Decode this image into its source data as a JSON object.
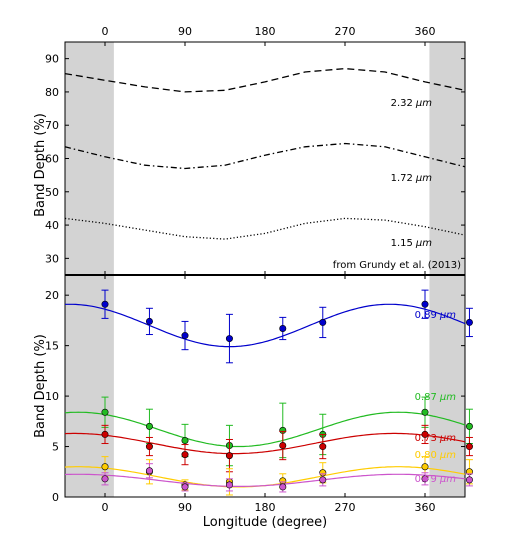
{
  "chart_data": [
    {
      "type": "line",
      "panel": "top",
      "ylabel": "Band Depth (%)",
      "xlim": [
        -45,
        405
      ],
      "ylim": [
        25,
        95
      ],
      "x_ticks_top": [
        "0",
        "90",
        "180",
        "270",
        "360"
      ],
      "x_tick_values_top": [
        0,
        90,
        180,
        270,
        360
      ],
      "y_ticks": [
        "30",
        "40",
        "50",
        "60",
        "70",
        "80",
        "90"
      ],
      "y_tick_values": [
        30,
        40,
        50,
        60,
        70,
        80,
        90
      ],
      "shaded_x_ranges": [
        [
          -45,
          10
        ],
        [
          365,
          405
        ]
      ],
      "source_note": "from Grundy et al. (2013)",
      "series": [
        {
          "name": "2.32 μm",
          "label_number": "2.32",
          "label_unit": "μm",
          "style": "dashed",
          "color": "#000000",
          "points": [
            [
              -45,
              85.5
            ],
            [
              0,
              83.5
            ],
            [
              45,
              81.5
            ],
            [
              90,
              80
            ],
            [
              135,
              80.5
            ],
            [
              180,
              83
            ],
            [
              225,
              86
            ],
            [
              270,
              87
            ],
            [
              315,
              86
            ],
            [
              360,
              83
            ],
            [
              405,
              80.5
            ]
          ]
        },
        {
          "name": "1.72 μm",
          "label_number": "1.72",
          "label_unit": "μm",
          "style": "dashdot",
          "color": "#000000",
          "points": [
            [
              -45,
              63.5
            ],
            [
              0,
              60.5
            ],
            [
              45,
              58
            ],
            [
              90,
              57
            ],
            [
              135,
              58
            ],
            [
              180,
              61
            ],
            [
              225,
              63.5
            ],
            [
              270,
              64.5
            ],
            [
              315,
              63.5
            ],
            [
              360,
              60.5
            ],
            [
              405,
              57.5
            ]
          ]
        },
        {
          "name": "1.15 μm",
          "label_number": "1.15",
          "label_unit": "μm",
          "style": "dotted",
          "color": "#000000",
          "points": [
            [
              -45,
              42
            ],
            [
              0,
              40.5
            ],
            [
              45,
              38.5
            ],
            [
              90,
              36.5
            ],
            [
              135,
              35.8
            ],
            [
              180,
              37.5
            ],
            [
              225,
              40.5
            ],
            [
              270,
              42
            ],
            [
              315,
              41.5
            ],
            [
              360,
              39.5
            ],
            [
              405,
              37
            ]
          ]
        }
      ]
    },
    {
      "type": "scatter",
      "panel": "bottom",
      "xlabel": "Longitude (degree)",
      "ylabel": "Band Depth (%)",
      "xlim": [
        -45,
        405
      ],
      "ylim": [
        0,
        22
      ],
      "x_ticks": [
        "0",
        "90",
        "180",
        "270",
        "360"
      ],
      "x_tick_values": [
        0,
        90,
        180,
        270,
        360
      ],
      "y_ticks": [
        "0",
        "5",
        "10",
        "15",
        "20"
      ],
      "y_tick_values": [
        0,
        5,
        10,
        15,
        20
      ],
      "shaded_x_ranges": [
        [
          -45,
          10
        ],
        [
          365,
          405
        ]
      ],
      "series": [
        {
          "name": "0.89 μm",
          "label_number": "0.89",
          "label_unit": "μm",
          "color": "#0000cc",
          "x": [
            0,
            50,
            90,
            140,
            200,
            245,
            360,
            410
          ],
          "y": [
            19.1,
            17.4,
            16.0,
            15.7,
            16.7,
            17.3,
            19.1,
            17.3
          ],
          "err": [
            1.4,
            1.3,
            1.4,
            2.4,
            1.1,
            1.5,
            1.4,
            1.4
          ],
          "fit": {
            "mean": 17.0,
            "amp": 2.1,
            "phase": 320
          }
        },
        {
          "name": "0.87 μm",
          "label_number": "0.87",
          "label_unit": "μm",
          "color": "#22bb22",
          "x": [
            0,
            50,
            90,
            140,
            200,
            245,
            360,
            410
          ],
          "y": [
            8.4,
            7.0,
            5.6,
            5.1,
            6.6,
            6.2,
            8.4,
            7.0
          ],
          "err": [
            1.5,
            1.7,
            1.6,
            2.0,
            2.7,
            2.0,
            1.5,
            1.7
          ],
          "fit": {
            "mean": 6.7,
            "amp": 1.7,
            "phase": 330
          }
        },
        {
          "name": "0.73 μm",
          "label_number": "0.73",
          "label_unit": "μm",
          "color": "#cc0000",
          "x": [
            0,
            50,
            90,
            140,
            200,
            245,
            360,
            410
          ],
          "y": [
            6.2,
            5.0,
            4.2,
            4.1,
            5.1,
            5.0,
            6.2,
            5.0
          ],
          "err": [
            0.9,
            0.9,
            1.0,
            1.6,
            1.4,
            1.2,
            0.9,
            0.9
          ],
          "fit": {
            "mean": 5.3,
            "amp": 1.0,
            "phase": 325
          }
        },
        {
          "name": "0.80 μm",
          "label_number": "0.80",
          "label_unit": "μm",
          "color": "#ffcc00",
          "x": [
            0,
            50,
            90,
            140,
            200,
            245,
            360,
            410
          ],
          "y": [
            3.0,
            2.5,
            1.2,
            1.5,
            1.6,
            2.4,
            3.0,
            2.5
          ],
          "err": [
            1.0,
            1.2,
            0.5,
            1.3,
            0.7,
            1.0,
            1.0,
            1.2
          ],
          "fit": {
            "mean": 2.0,
            "amp": 1.0,
            "phase": 330
          }
        },
        {
          "name": "0.79 μm",
          "label_number": "0.79",
          "label_unit": "μm",
          "color": "#cc55cc",
          "x": [
            0,
            50,
            90,
            140,
            200,
            245,
            360,
            410
          ],
          "y": [
            1.8,
            2.6,
            1.0,
            1.2,
            1.0,
            1.7,
            1.8,
            1.7
          ],
          "err": [
            0.6,
            0.7,
            0.4,
            0.6,
            0.5,
            0.6,
            0.6,
            0.6
          ],
          "fit": {
            "mean": 1.65,
            "amp": 0.6,
            "phase": 330
          }
        }
      ]
    }
  ]
}
